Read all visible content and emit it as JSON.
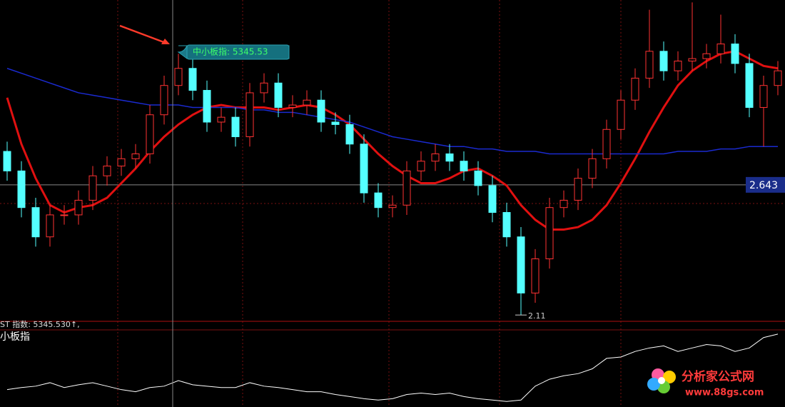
{
  "chart_data": [
    {
      "type": "candlestick",
      "open": [
        2.78,
        2.7,
        2.55,
        2.43,
        2.52,
        2.52,
        2.58,
        2.68,
        2.72,
        2.75,
        2.77,
        2.93,
        3.05,
        3.12,
        3.03,
        2.9,
        2.92,
        2.84,
        3.02,
        3.06,
        2.96,
        2.97,
        2.99,
        2.9,
        2.89,
        2.81,
        2.61,
        2.55,
        2.56,
        2.7,
        2.74,
        2.77,
        2.74,
        2.7,
        2.64,
        2.53,
        2.43,
        2.2,
        2.34,
        2.55,
        2.58,
        2.67,
        2.75,
        2.87,
        2.99,
        3.08,
        3.19,
        3.11,
        3.15,
        3.16,
        3.18,
        3.22,
        3.14,
        2.96,
        3.05
      ],
      "high": [
        2.82,
        2.74,
        2.59,
        2.56,
        2.56,
        2.62,
        2.72,
        2.76,
        2.79,
        2.81,
        2.97,
        3.09,
        3.18,
        3.16,
        3.07,
        2.96,
        2.96,
        3.06,
        3.1,
        3.1,
        3.01,
        3.03,
        3.03,
        2.94,
        2.93,
        2.85,
        2.65,
        2.6,
        2.74,
        2.78,
        2.81,
        2.81,
        2.78,
        2.74,
        2.68,
        2.57,
        2.47,
        2.38,
        2.59,
        2.62,
        2.71,
        2.79,
        2.91,
        3.03,
        3.12,
        3.36,
        3.23,
        3.19,
        3.39,
        3.22,
        3.34,
        3.26,
        3.18,
        3.09,
        3.15
      ],
      "low": [
        2.66,
        2.51,
        2.39,
        2.39,
        2.48,
        2.48,
        2.54,
        2.64,
        2.68,
        2.71,
        2.73,
        2.89,
        3.01,
        2.99,
        2.86,
        2.86,
        2.8,
        2.8,
        2.98,
        2.92,
        2.92,
        2.93,
        2.86,
        2.85,
        2.77,
        2.57,
        2.51,
        2.51,
        2.52,
        2.66,
        2.7,
        2.7,
        2.66,
        2.6,
        2.49,
        2.39,
        2.11,
        2.16,
        2.3,
        2.51,
        2.54,
        2.63,
        2.71,
        2.83,
        2.95,
        3.04,
        3.07,
        3.07,
        3.11,
        3.12,
        3.14,
        3.1,
        2.92,
        2.8,
        3.01
      ],
      "close": [
        2.7,
        2.55,
        2.43,
        2.52,
        2.52,
        2.58,
        2.68,
        2.72,
        2.75,
        2.77,
        2.93,
        3.05,
        3.12,
        3.03,
        2.9,
        2.92,
        2.84,
        3.02,
        3.06,
        2.96,
        2.97,
        2.99,
        2.9,
        2.89,
        2.81,
        2.61,
        2.55,
        2.56,
        2.7,
        2.74,
        2.77,
        2.74,
        2.7,
        2.64,
        2.53,
        2.43,
        2.2,
        2.34,
        2.55,
        2.58,
        2.67,
        2.75,
        2.87,
        2.99,
        3.08,
        3.19,
        3.11,
        3.15,
        3.16,
        3.18,
        3.22,
        3.14,
        2.96,
        3.05,
        3.11
      ],
      "up_color": "#ff3232",
      "down_color": "#54ffff",
      "series": [
        {
          "color": "#e01010",
          "values": [
            3.0,
            2.81,
            2.67,
            2.56,
            2.53,
            2.55,
            2.56,
            2.59,
            2.65,
            2.71,
            2.78,
            2.84,
            2.89,
            2.93,
            2.96,
            2.97,
            2.96,
            2.96,
            2.96,
            2.95,
            2.96,
            2.97,
            2.96,
            2.93,
            2.89,
            2.83,
            2.77,
            2.72,
            2.68,
            2.65,
            2.65,
            2.67,
            2.7,
            2.71,
            2.68,
            2.64,
            2.56,
            2.5,
            2.46,
            2.46,
            2.47,
            2.5,
            2.56,
            2.65,
            2.75,
            2.86,
            2.96,
            3.05,
            3.11,
            3.15,
            3.18,
            3.19,
            3.16,
            3.13,
            3.12
          ]
        },
        {
          "color": "#1a2ad0",
          "values": [
            3.12,
            3.1,
            3.08,
            3.06,
            3.04,
            3.02,
            3.01,
            3.0,
            2.99,
            2.98,
            2.97,
            2.97,
            2.97,
            2.96,
            2.96,
            2.96,
            2.96,
            2.95,
            2.95,
            2.94,
            2.94,
            2.93,
            2.92,
            2.91,
            2.9,
            2.88,
            2.86,
            2.84,
            2.83,
            2.82,
            2.81,
            2.8,
            2.8,
            2.79,
            2.79,
            2.78,
            2.78,
            2.78,
            2.77,
            2.77,
            2.77,
            2.77,
            2.77,
            2.77,
            2.77,
            2.77,
            2.77,
            2.78,
            2.78,
            2.78,
            2.79,
            2.79,
            2.8,
            2.8,
            2.8
          ]
        }
      ],
      "ylim": [
        2.09,
        3.4
      ],
      "cursor_price": 2.643,
      "low_mark": 2.11,
      "tooltip": "中小板指: 5345.53"
    },
    {
      "type": "line",
      "title": "ST 指数: 5345.530↑,",
      "name": "小板指",
      "color": "#ffffff",
      "values": [
        25,
        28,
        30,
        35,
        28,
        32,
        35,
        30,
        25,
        22,
        28,
        30,
        38,
        32,
        30,
        28,
        28,
        35,
        30,
        28,
        25,
        22,
        22,
        18,
        15,
        12,
        10,
        12,
        18,
        20,
        18,
        20,
        15,
        12,
        10,
        8,
        10,
        30,
        40,
        45,
        48,
        55,
        70,
        72,
        80,
        85,
        88,
        80,
        85,
        90,
        88,
        80,
        85,
        100,
        105
      ],
      "ylim": [
        0,
        110
      ]
    }
  ],
  "watermark": {
    "title": "分析家公式网",
    "url": "www.88gs.com"
  }
}
